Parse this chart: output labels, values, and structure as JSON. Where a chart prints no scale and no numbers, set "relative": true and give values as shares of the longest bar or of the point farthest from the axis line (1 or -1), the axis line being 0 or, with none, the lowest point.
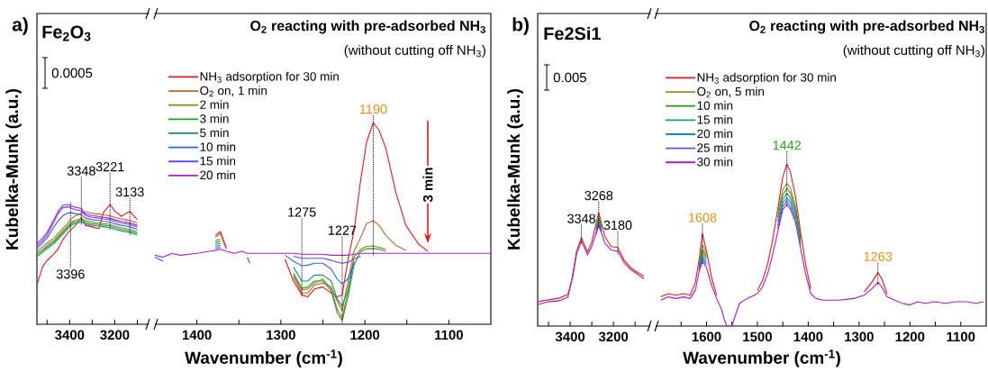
{
  "chart_data": [
    {
      "type": "line",
      "relative": true,
      "tick_labels": "x",
      "ylabel": "Kubelka-Munk (a.u.)",
      "xlim": [
        3545,
        3050
      ],
      "xticks": [
        {
          "value": 3500,
          "label": null
        },
        3400,
        {
          "value": 3300,
          "label": null
        },
        3200,
        {
          "value": 3100,
          "label": null
        }
      ],
      "x": [
        3545,
        3520,
        3500,
        3470,
        3450,
        3430,
        3410,
        3396,
        3380,
        3348,
        3330,
        3300,
        3270,
        3250,
        3221,
        3200,
        3170,
        3150,
        3133,
        3100
      ],
      "series": [
        {
          "color": "#e3191c",
          "values": [
            0.331,
            0.478,
            0.532,
            0.585,
            0.632,
            0.706,
            0.759,
            0.786,
            0.813,
            0.893,
            0.826,
            0.813,
            0.799,
            0.933,
            1.0,
            0.946,
            0.9,
            0.926,
            0.94,
            0.873
          ]
        },
        {
          "color": "#c0622a",
          "values": [
            0.612,
            0.645,
            0.679,
            0.719,
            0.759,
            0.799,
            0.839,
            0.873,
            0.9,
            0.926,
            0.94,
            0.926,
            0.92,
            0.913,
            0.906,
            0.893,
            0.88,
            0.873,
            0.866,
            0.846
          ]
        },
        {
          "color": "#7f8c12",
          "values": [
            0.592,
            0.625,
            0.659,
            0.699,
            0.739,
            0.779,
            0.819,
            0.846,
            0.866,
            0.88,
            0.866,
            0.853,
            0.846,
            0.839,
            0.833,
            0.819,
            0.806,
            0.799,
            0.793,
            0.773
          ]
        },
        {
          "color": "#2f9a2a",
          "values": [
            0.578,
            0.612,
            0.645,
            0.685,
            0.726,
            0.766,
            0.806,
            0.833,
            0.853,
            0.866,
            0.853,
            0.839,
            0.833,
            0.826,
            0.819,
            0.806,
            0.793,
            0.786,
            0.779,
            0.759
          ]
        },
        {
          "color": "#11907a",
          "values": [
            0.565,
            0.599,
            0.632,
            0.672,
            0.712,
            0.752,
            0.793,
            0.819,
            0.839,
            0.853,
            0.839,
            0.826,
            0.819,
            0.813,
            0.806,
            0.793,
            0.779,
            0.773,
            0.766,
            0.746
          ]
        },
        {
          "color": "#2f63f2",
          "values": [
            0.632,
            0.679,
            0.719,
            0.813,
            0.866,
            0.906,
            0.926,
            0.933,
            0.926,
            0.913,
            0.886,
            0.873,
            0.866,
            0.859,
            0.853,
            0.839,
            0.826,
            0.819,
            0.813,
            0.793
          ]
        },
        {
          "color": "#6f44e4",
          "values": [
            0.652,
            0.699,
            0.746,
            0.853,
            0.926,
            0.973,
            0.98,
            0.973,
            0.96,
            0.946,
            0.906,
            0.893,
            0.886,
            0.88,
            0.873,
            0.859,
            0.846,
            0.839,
            0.833,
            0.813
          ]
        },
        {
          "color": "#b21fcc",
          "values": [
            0.672,
            0.719,
            0.766,
            0.873,
            0.946,
            0.993,
            1.0,
            0.993,
            0.98,
            0.966,
            0.92,
            0.906,
            0.9,
            0.893,
            0.886,
            0.873,
            0.859,
            0.853,
            0.846,
            0.826
          ]
        }
      ],
      "annotations": [
        "a)",
        "Fe$_{2}$O$_{3}$",
        "0.0005",
        {
          "text": "3348",
          "x": 3348,
          "y": 0.966
        },
        {
          "text": "3221",
          "x": 3221,
          "y": 1.0
        },
        {
          "text": "3133",
          "x": 3133,
          "y": 0.94
        },
        {
          "text": "3396",
          "x": 3396,
          "y": 0.993
        }
      ]
    },
    {
      "type": "line",
      "relative": true,
      "tick_labels": "x",
      "legend": "top left",
      "title": "O$_{2}$ reacting with pre-adsorbed NH$_{3}$",
      "subtitle": "(without cutting off NH$_{3}$)",
      "xlabel": "Wavenumber (cm$^{-1}$)",
      "xlim": [
        1450,
        1050
      ],
      "xticks": [
        1400,
        {
          "value": 1350,
          "label": null
        },
        1300,
        {
          "value": 1250,
          "label": null
        },
        1200,
        {
          "value": 1150,
          "label": null
        },
        1100
      ],
      "x": [
        1450,
        1440,
        1430,
        1420,
        1400,
        1385,
        1378,
        1372,
        1365,
        1355,
        1347,
        1340,
        1337,
        1330,
        1310,
        1295,
        1285,
        1275,
        1268,
        1260,
        1250,
        1240,
        1233,
        1227,
        1220,
        1213,
        1205,
        1198,
        1190,
        1183,
        1175,
        1163,
        1151,
        1136,
        1125,
        1110,
        1090,
        1070,
        1050
      ],
      "series": [
        {
          "name": "NH$_{3}$ adsorption for 30 min",
          "color": "#e3191c",
          "values": [
            null,
            null,
            null,
            null,
            null,
            null,
            0.43,
            0.45,
            0.37,
            null,
            null,
            0.32,
            0.29,
            null,
            null,
            0.31,
            0.2,
            0.13,
            0.12,
            0.16,
            0.17,
            0.14,
            0.12,
            0.13,
            0.31,
            0.45,
            0.71,
            0.9,
            1.0,
            0.96,
            0.87,
            0.645,
            0.48,
            0.386,
            0.35,
            null,
            null,
            null,
            null
          ]
        },
        {
          "name": "O$_{2}$ on, 1 min",
          "color": "#c0622a",
          "values": [
            null,
            null,
            null,
            null,
            null,
            null,
            0.42,
            0.44,
            0.36,
            null,
            null,
            null,
            null,
            null,
            null,
            null,
            0.22,
            0.14,
            0.14,
            0.18,
            0.19,
            0.17,
            0.1,
            0.05,
            0.2,
            0.35,
            0.42,
            0.49,
            0.505,
            0.48,
            0.43,
            0.38,
            0.355,
            null,
            null,
            null,
            null,
            null,
            null
          ]
        },
        {
          "name": "2 min",
          "color": "#7f8c12",
          "values": [
            null,
            null,
            null,
            null,
            null,
            null,
            0.405,
            0.41,
            null,
            null,
            null,
            null,
            null,
            null,
            null,
            null,
            0.23,
            0.155,
            0.16,
            0.19,
            0.21,
            0.16,
            0.06,
            0.014,
            0.15,
            0.32,
            0.36,
            0.375,
            0.377,
            0.37,
            0.36,
            null,
            null,
            null,
            null,
            null,
            null,
            null,
            null
          ]
        },
        {
          "name": "3 min",
          "color": "#2f9a2a",
          "values": [
            null,
            null,
            null,
            null,
            null,
            null,
            0.395,
            0.4,
            null,
            null,
            null,
            null,
            null,
            null,
            null,
            null,
            0.24,
            0.164,
            0.17,
            0.2,
            0.2,
            0.15,
            0.04,
            0,
            0.12,
            0.28,
            0.35,
            0.363,
            0.364,
            0.36,
            0.35,
            null,
            null,
            null,
            null,
            null,
            null,
            null,
            null
          ]
        },
        {
          "name": "5 min",
          "color": "#11907a",
          "values": [
            null,
            null,
            null,
            null,
            null,
            null,
            0.385,
            0.39,
            null,
            null,
            null,
            null,
            null,
            null,
            null,
            null,
            0.27,
            0.2,
            0.2,
            0.23,
            0.23,
            0.2,
            0.11,
            0.073,
            0.16,
            0.3,
            null,
            null,
            null,
            null,
            null,
            null,
            null,
            null,
            null,
            null,
            null,
            null,
            null
          ]
        },
        {
          "name": "10 min",
          "color": "#2f63f2",
          "values": [
            0.32,
            0.3,
            null,
            null,
            null,
            null,
            0.375,
            0.38,
            null,
            null,
            null,
            null,
            null,
            null,
            null,
            0.33,
            0.3,
            0.277,
            0.28,
            0.29,
            0.29,
            0.26,
            0.21,
            0.186,
            0.21,
            0.29,
            null,
            null,
            null,
            null,
            null,
            null,
            null,
            null,
            null,
            null,
            null,
            null,
            null
          ]
        },
        {
          "name": "15 min",
          "color": "#6f44e4",
          "values": [
            null,
            null,
            null,
            null,
            null,
            null,
            0.365,
            0.37,
            null,
            null,
            null,
            null,
            null,
            null,
            null,
            null,
            0.325,
            0.315,
            0.315,
            0.315,
            0.315,
            0.305,
            0.295,
            0.29,
            0.295,
            0.31,
            0.325,
            null,
            null,
            null,
            null,
            null,
            null,
            null,
            null,
            null,
            null,
            null,
            null
          ]
        },
        {
          "name": "20 min",
          "color": "#b21fcc",
          "values": [
            0.33,
            0.32,
            0.34,
            0.33,
            0.34,
            0.35,
            0.355,
            0.36,
            0.35,
            0.34,
            0.35,
            0.34,
            0.34,
            0.34,
            0.34,
            0.34,
            0.34,
            0.335,
            0.335,
            0.335,
            0.335,
            0.33,
            0.33,
            0.33,
            0.33,
            0.335,
            0.34,
            0.34,
            0.34,
            0.34,
            0.34,
            0.34,
            0.34,
            0.34,
            0.34,
            0.34,
            0.34,
            0.34,
            0.34
          ]
        }
      ],
      "annotations": [
        "3 min",
        {
          "text": "1275",
          "x": 1275,
          "y": 0.13
        },
        {
          "text": "1227",
          "x": 1227,
          "y": 0
        },
        {
          "text": "1190",
          "x": 1190,
          "y": 1.0
        }
      ]
    },
    {
      "type": "line",
      "relative": true,
      "tick_labels": "x",
      "ylabel": "Kubelka-Munk (a.u.)",
      "xlim": [
        3550,
        3030
      ],
      "xticks": [
        {
          "value": 3500,
          "label": null
        },
        3400,
        {
          "value": 3300,
          "label": null
        },
        3200,
        {
          "value": 3100,
          "label": null
        }
      ],
      "x": [
        3550,
        3500,
        3450,
        3410,
        3390,
        3370,
        3348,
        3320,
        3300,
        3268,
        3240,
        3210,
        3180,
        3150,
        3120,
        3090,
        3060
      ],
      "series": [
        {
          "color": "#e3191c",
          "values": [
            0.19,
            0.215,
            0.223,
            0.255,
            0.433,
            0.66,
            0.781,
            0.652,
            0.741,
            1.0,
            0.79,
            0.7,
            0.692,
            0.579,
            0.514,
            0.474,
            0.441
          ]
        },
        {
          "color": "#a58420",
          "x": [
            3280,
            3268,
            3255
          ],
          "values": [
            0.87,
            0.968,
            0.887
          ]
        },
        {
          "color": "#2c9420",
          "x": [
            3280,
            3268,
            3255
          ],
          "values": [
            0.854,
            0.951,
            0.87
          ]
        },
        {
          "color": "#1fa067",
          "x": [
            3280,
            3268,
            3255
          ],
          "values": [
            0.838,
            0.935,
            0.854
          ]
        },
        {
          "color": "#1f7fc2",
          "x": [
            3280,
            3268,
            3255
          ],
          "values": [
            0.822,
            0.919,
            0.838
          ]
        },
        {
          "color": "#5f52ea",
          "x": [
            3280,
            3268,
            3255
          ],
          "values": [
            0.806,
            0.903,
            0.822
          ]
        },
        {
          "color": "#a41fc4",
          "values": [
            0.215,
            0.231,
            0.247,
            0.28,
            0.417,
            0.636,
            0.749,
            0.628,
            0.7,
            0.887,
            0.733,
            0.668,
            0.66,
            0.555,
            0.498,
            0.458,
            0.417
          ]
        }
      ],
      "annotations": [
        "b)",
        "Fe2Si1",
        "0.005",
        {
          "text": "3348",
          "x": 3348,
          "y": 0.781
        },
        {
          "text": "3268",
          "x": 3268,
          "y": 1.0
        },
        {
          "text": "3180",
          "x": 3180,
          "y": 0.692
        }
      ]
    },
    {
      "type": "line",
      "relative": true,
      "tick_labels": "x",
      "legend": "top left",
      "title": "O$_{2}$ reacting with pre-adsorbed NH$_{3}$",
      "subtitle": "(without cutting off NH$_{3}$)",
      "xlabel": "Wavenumber (cm$^{-1}$)",
      "xlim": [
        1700,
        1050
      ],
      "xticks": [
        {
          "value": 1650,
          "label": null
        },
        1600,
        {
          "value": 1550,
          "label": null
        },
        1500,
        {
          "value": 1450,
          "label": null
        },
        1400,
        {
          "value": 1350,
          "label": null
        },
        1300,
        {
          "value": 1250,
          "label": null
        },
        1200,
        {
          "value": 1150,
          "label": null
        },
        1100
      ],
      "x": [
        1690,
        1675,
        1660,
        1645,
        1632,
        1622,
        1615,
        1608,
        1600,
        1590,
        1580,
        1570,
        1565,
        1560,
        1550,
        1545,
        1535,
        1520,
        1500,
        1490,
        1480,
        1470,
        1460,
        1450,
        1442,
        1435,
        1425,
        1415,
        1405,
        1395,
        1385,
        1370,
        1340,
        1310,
        1290,
        1275,
        1263,
        1255,
        1245,
        1230,
        1215,
        1200,
        1185,
        1170,
        1150,
        1130,
        1110,
        1090,
        1070,
        1055
      ],
      "series": [
        {
          "name": "NH$_{3}$ adsorption for 30 min",
          "color": "#e3191c",
          "values": [
            0.18,
            0.2,
            0.19,
            0.2,
            0.19,
            0.27,
            0.4,
            0.57,
            0.46,
            0.3,
            0.19,
            null,
            null,
            null,
            null,
            null,
            null,
            null,
            0.22,
            0.28,
            0.38,
            0.53,
            0.72,
            0.92,
            1.0,
            0.95,
            0.8,
            0.58,
            0.38,
            0.23,
            null,
            null,
            null,
            null,
            0.21,
            0.27,
            0.33,
            0.29,
            0.2,
            null,
            null,
            null,
            null,
            null,
            null,
            null,
            null,
            null,
            null,
            null
          ]
        },
        {
          "name": "O$_{2}$ on, 5 min",
          "color": "#a58420",
          "x": [
            1615,
            1608,
            1600,
            1530,
            1460,
            1450,
            1442,
            1435,
            1425,
            1415
          ],
          "values": [
            0.388,
            0.5,
            0.443,
            null,
            0.7,
            0.84,
            0.88,
            0.85,
            0.74,
            0.56
          ]
        },
        {
          "name": "10 min",
          "color": "#2c9420",
          "x": [
            1615,
            1608,
            1600,
            1530,
            1460,
            1450,
            1442,
            1435,
            1425,
            1415
          ],
          "values": [
            0.376,
            0.47,
            0.427,
            null,
            0.67,
            0.81,
            0.85,
            0.82,
            0.72,
            0.54
          ]
        },
        {
          "name": "15 min",
          "color": "#1fa067",
          "x": [
            1615,
            1608,
            1600,
            1530,
            1460,
            1450,
            1442,
            1435,
            1425,
            1415
          ],
          "values": [
            0.365,
            0.45,
            0.41,
            null,
            0.645,
            0.78,
            0.82,
            0.79,
            0.7,
            0.52
          ]
        },
        {
          "name": "20 min",
          "color": "#1f7fc2",
          "x": [
            1615,
            1608,
            1600,
            1530,
            1460,
            1450,
            1442,
            1435,
            1425,
            1415
          ],
          "values": [
            0.353,
            0.43,
            0.393,
            null,
            0.62,
            0.76,
            0.79,
            0.765,
            0.68,
            0.5
          ]
        },
        {
          "name": "25 min",
          "color": "#5f52ea",
          "x": [
            1615,
            1608,
            1600,
            1530,
            1460,
            1450,
            1442,
            1435,
            1425
          ],
          "values": [
            0.342,
            0.415,
            0.377,
            null,
            0.6,
            0.74,
            0.77,
            0.74,
            0.66
          ]
        },
        {
          "name": "30 min",
          "color": "#a41fc4",
          "values": [
            0.16,
            0.18,
            0.17,
            0.18,
            0.17,
            0.22,
            0.33,
            0.4,
            0.36,
            0.25,
            0.17,
            0.1,
            0.04,
            0,
            0,
            0.05,
            0.14,
            0.17,
            0.2,
            0.24,
            0.32,
            0.44,
            0.58,
            0.72,
            0.75,
            0.72,
            0.64,
            0.48,
            0.32,
            0.2,
            0.17,
            0.16,
            0.16,
            0.17,
            0.19,
            0.23,
            0.27,
            0.24,
            0.18,
            0.16,
            0.14,
            0.13,
            0.15,
            0.14,
            0.15,
            0.14,
            0.15,
            0.15,
            0.14,
            0.15
          ]
        }
      ],
      "annotations": [
        {
          "text": "1608",
          "x": 1608,
          "y": 0.57
        },
        {
          "text": "1442",
          "x": 1442,
          "y": 1.0
        },
        {
          "text": "1263",
          "x": 1263,
          "y": 0.33
        }
      ]
    }
  ]
}
